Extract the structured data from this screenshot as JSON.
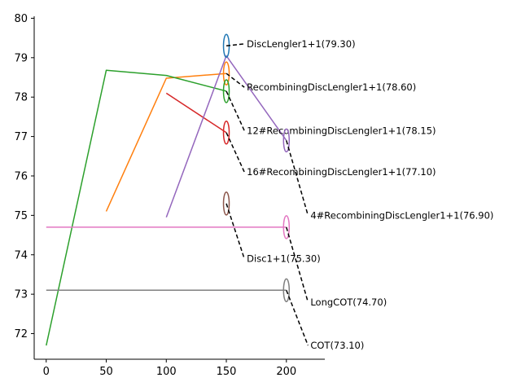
{
  "chart_data": {
    "type": "line",
    "title": "",
    "xlabel": "",
    "ylabel": "",
    "xlim": [
      -10,
      232
    ],
    "ylim": [
      71.35,
      80.05
    ],
    "x_ticks": [
      0,
      50,
      100,
      150,
      200
    ],
    "y_ticks": [
      72,
      73,
      74,
      75,
      76,
      77,
      78,
      79,
      80
    ],
    "grid": false,
    "series": [
      {
        "color": "#1f77b4",
        "x": [
          150
        ],
        "y": [
          79.3
        ]
      },
      {
        "color": "#ff7f0e",
        "x": [
          50,
          100,
          150
        ],
        "y": [
          75.1,
          78.48,
          78.6
        ]
      },
      {
        "color": "#2ca02c",
        "x": [
          0,
          50,
          100,
          150
        ],
        "y": [
          71.7,
          78.68,
          78.55,
          78.15
        ]
      },
      {
        "color": "#d62728",
        "x": [
          100,
          150
        ],
        "y": [
          78.1,
          77.1
        ]
      },
      {
        "color": "#9467bd",
        "x": [
          100,
          150,
          200
        ],
        "y": [
          74.95,
          79.05,
          76.9
        ]
      },
      {
        "color": "#8c564b",
        "x": [
          150
        ],
        "y": [
          75.3
        ]
      },
      {
        "color": "#e377c2",
        "x": [
          0,
          50,
          100,
          150,
          200
        ],
        "y": [
          74.7,
          74.7,
          74.7,
          74.7,
          74.7
        ]
      },
      {
        "color": "#7f7f7f",
        "x": [
          0,
          50,
          100,
          150,
          200
        ],
        "y": [
          73.1,
          73.1,
          73.1,
          73.1,
          73.1
        ]
      }
    ],
    "annotations": [
      {
        "text": "DiscLengler1+1(79.30)",
        "color": "#1f77b4",
        "x": 150,
        "y": 79.3,
        "label_x": 165,
        "label_y": 79.35
      },
      {
        "text": "RecombiningDiscLengler1+1(78.60)",
        "color": "#ff7f0e",
        "x": 150,
        "y": 78.6,
        "label_x": 165,
        "label_y": 78.25
      },
      {
        "text": "12#RecombiningDiscLengler1+1(78.15)",
        "color": "#2ca02c",
        "x": 150,
        "y": 78.15,
        "label_x": 165,
        "label_y": 77.15
      },
      {
        "text": "16#RecombiningDiscLengler1+1(77.10)",
        "color": "#d62728",
        "x": 150,
        "y": 77.1,
        "label_x": 165,
        "label_y": 76.1
      },
      {
        "text": "4#RecombiningDiscLengler1+1(76.90)",
        "color": "#9467bd",
        "x": 200,
        "y": 76.9,
        "label_x": 218,
        "label_y": 75.0
      },
      {
        "text": "Disc1+1(75.30)",
        "color": "#8c564b",
        "x": 150,
        "y": 75.3,
        "label_x": 165,
        "label_y": 73.9
      },
      {
        "text": "LongCOT(74.70)",
        "color": "#e377c2",
        "x": 200,
        "y": 74.7,
        "label_x": 218,
        "label_y": 72.8
      },
      {
        "text": "COT(73.10)",
        "color": "#7f7f7f",
        "x": 200,
        "y": 73.1,
        "label_x": 218,
        "label_y": 71.7
      }
    ]
  }
}
